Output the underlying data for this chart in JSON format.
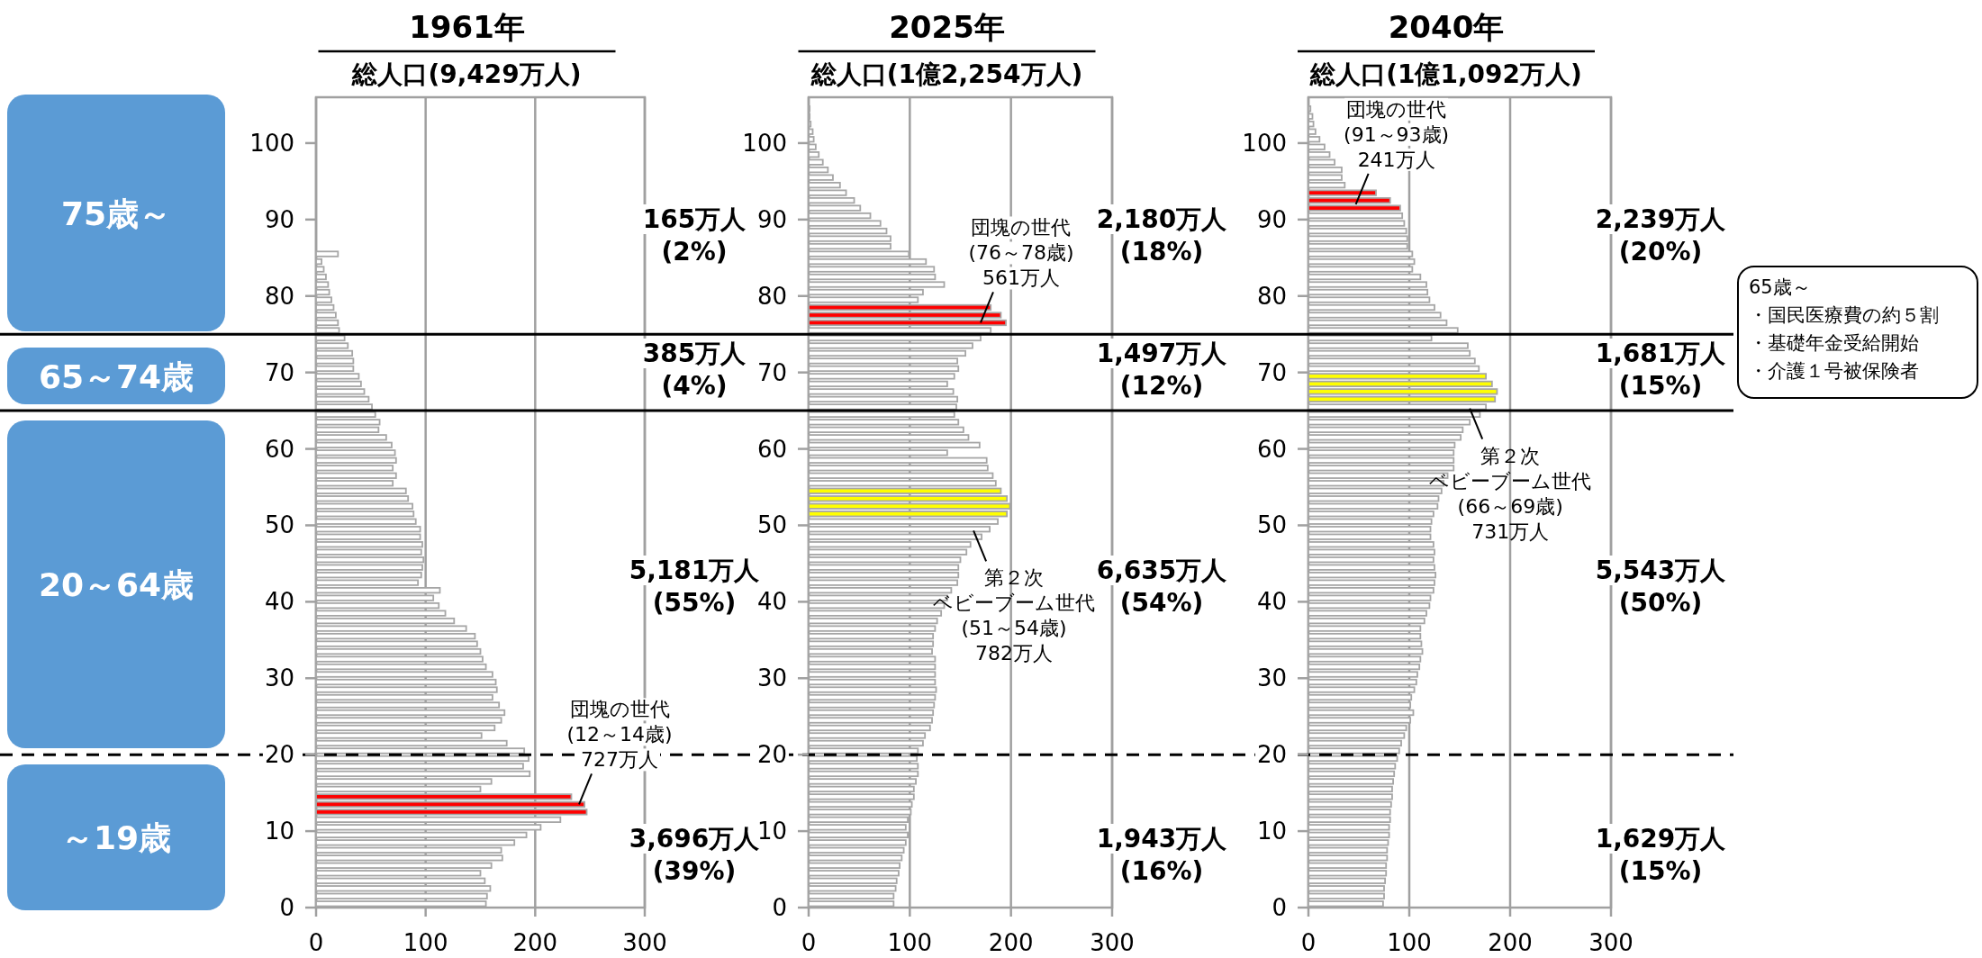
{
  "chart_data": [
    {
      "type": "histogram",
      "orientation": "horizontal",
      "title": "1961年",
      "subtitle": "総人口(9,429万人)",
      "bins": [
        0,
        1,
        2,
        3,
        4,
        5,
        6,
        7,
        8,
        9,
        10,
        11,
        12,
        13,
        14,
        15,
        16,
        17,
        18,
        19,
        20,
        21,
        22,
        23,
        24,
        25,
        26,
        27,
        28,
        29,
        30,
        31,
        32,
        33,
        34,
        35,
        36,
        37,
        38,
        39,
        40,
        41,
        42,
        43,
        44,
        45,
        46,
        47,
        48,
        49,
        50,
        51,
        52,
        53,
        54,
        55,
        56,
        57,
        58,
        59,
        60,
        61,
        62,
        63,
        64,
        65,
        66,
        67,
        68,
        69,
        70,
        71,
        72,
        73,
        74,
        75,
        76,
        77,
        78,
        79,
        80,
        81,
        82,
        83,
        84,
        85,
        86
      ],
      "values": [
        155,
        156,
        159,
        154,
        150,
        160,
        170,
        169,
        181,
        192,
        205,
        223,
        247,
        245,
        233,
        150,
        160,
        195,
        189,
        194,
        190,
        174,
        151,
        163,
        169,
        172,
        167,
        161,
        165,
        164,
        161,
        155,
        152,
        150,
        147,
        145,
        137,
        126,
        118,
        112,
        107,
        113,
        93,
        96,
        97,
        98,
        96,
        97,
        95,
        95,
        91,
        89,
        88,
        84,
        82,
        70,
        73,
        70,
        73,
        72,
        69,
        64,
        57,
        58,
        54,
        51,
        48,
        44,
        41,
        39,
        34,
        34,
        33,
        29,
        26,
        21,
        20,
        18,
        16,
        14,
        12,
        11,
        9,
        7,
        5,
        20
      ],
      "colors": [
        "#ffffff",
        "#ffffff",
        "#ffffff",
        "#ffffff",
        "#ffffff",
        "#ffffff",
        "#ffffff",
        "#ffffff",
        "#ffffff",
        "#ffffff",
        "#ffffff",
        "#ffffff",
        "#ff0000",
        "#ff0000",
        "#ff0000",
        "#ffffff",
        "#ffffff",
        "#ffffff",
        "#ffffff",
        "#ffffff",
        "#ffffff",
        "#ffffff",
        "#ffffff",
        "#ffffff",
        "#ffffff",
        "#ffffff",
        "#ffffff",
        "#ffffff",
        "#ffffff",
        "#ffffff",
        "#ffffff",
        "#ffffff",
        "#ffffff",
        "#ffffff",
        "#ffffff",
        "#ffffff",
        "#ffffff",
        "#ffffff",
        "#ffffff",
        "#ffffff",
        "#ffffff",
        "#ffffff",
        "#ffffff",
        "#ffffff",
        "#ffffff",
        "#ffffff",
        "#ffffff",
        "#ffffff",
        "#ffffff",
        "#ffffff",
        "#ffffff",
        "#ffffff",
        "#ffffff",
        "#ffffff",
        "#ffffff",
        "#ffffff",
        "#ffffff",
        "#ffffff",
        "#ffffff",
        "#ffffff",
        "#ffffff",
        "#ffffff",
        "#ffffff",
        "#ffffff",
        "#ffffff",
        "#ffffff",
        "#ffffff",
        "#ffffff",
        "#ffffff",
        "#ffffff",
        "#ffffff",
        "#ffffff",
        "#ffffff",
        "#ffffff",
        "#ffffff",
        "#ffffff",
        "#ffffff",
        "#ffffff",
        "#ffffff",
        "#ffffff",
        "#ffffff",
        "#ffffff",
        "#ffffff",
        "#ffffff",
        "#ffffff",
        "#ffffff"
      ],
      "xlim": [
        0,
        300
      ],
      "xticks": [
        0,
        100,
        200,
        300
      ],
      "ylim": [
        0,
        106
      ],
      "yticks": [
        0,
        10,
        20,
        30,
        40,
        50,
        60,
        70,
        80,
        90,
        100
      ],
      "grid": "x",
      "ref_lines": [
        {
          "axis": "y",
          "value": 75,
          "line_style": "solid",
          "color": "#000000"
        },
        {
          "axis": "y",
          "value": 65,
          "line_style": "solid",
          "color": "#000000"
        },
        {
          "axis": "y",
          "value": 20,
          "line_style": "dashed",
          "color": "#000000"
        }
      ],
      "annotations": [
        "165万人\n(2%)",
        "385万人\n(4%)",
        "5,181万人\n(55%)",
        "3,696万人\n(39%)",
        "75歳～",
        "65～74歳",
        "20～64歳",
        "～19歳",
        {
          "text": "団塊の世代\n(12～14歳)\n727万人",
          "x": 240,
          "y": 13.5
        }
      ]
    },
    {
      "type": "histogram",
      "orientation": "horizontal",
      "title": "2025年",
      "subtitle": "総人口(1億2,254万人)",
      "bins": [
        0,
        1,
        2,
        3,
        4,
        5,
        6,
        7,
        8,
        9,
        10,
        11,
        12,
        13,
        14,
        15,
        16,
        17,
        18,
        19,
        20,
        21,
        22,
        23,
        24,
        25,
        26,
        27,
        28,
        29,
        30,
        31,
        32,
        33,
        34,
        35,
        36,
        37,
        38,
        39,
        40,
        41,
        42,
        43,
        44,
        45,
        46,
        47,
        48,
        49,
        50,
        51,
        52,
        53,
        54,
        55,
        56,
        57,
        58,
        59,
        60,
        61,
        62,
        63,
        64,
        65,
        66,
        67,
        68,
        69,
        70,
        71,
        72,
        73,
        74,
        75,
        76,
        77,
        78,
        79,
        80,
        81,
        82,
        83,
        84,
        85,
        86,
        87,
        88,
        89,
        90,
        91,
        92,
        93,
        94,
        95,
        96,
        97,
        98,
        99,
        100,
        101,
        102,
        103,
        104,
        105
      ],
      "values": [
        84,
        84,
        86,
        87,
        89,
        90,
        92,
        94,
        96,
        98,
        96,
        98,
        101,
        102,
        104,
        104,
        106,
        108,
        108,
        107,
        108,
        113,
        115,
        120,
        122,
        123,
        124,
        125,
        126,
        125,
        125,
        125,
        125,
        122,
        123,
        123,
        125,
        127,
        131,
        134,
        137,
        141,
        147,
        148,
        148,
        150,
        156,
        160,
        171,
        179,
        187,
        196,
        199,
        196,
        190,
        185,
        182,
        177,
        176,
        137,
        169,
        158,
        153,
        148,
        144,
        146,
        147,
        143,
        137,
        144,
        148,
        147,
        155,
        162,
        170,
        180,
        195,
        190,
        180,
        108,
        113,
        134,
        125,
        124,
        116,
        99,
        81,
        81,
        77,
        71,
        61,
        51,
        45,
        37,
        31,
        24,
        19,
        14,
        10,
        7,
        5,
        4,
        2,
        1,
        1
      ],
      "colors": [
        "#ffffff",
        "#ffffff",
        "#ffffff",
        "#ffffff",
        "#ffffff",
        "#ffffff",
        "#ffffff",
        "#ffffff",
        "#ffffff",
        "#ffffff",
        "#ffffff",
        "#ffffff",
        "#ffffff",
        "#ffffff",
        "#ffffff",
        "#ffffff",
        "#ffffff",
        "#ffffff",
        "#ffffff",
        "#ffffff",
        "#ffffff",
        "#ffffff",
        "#ffffff",
        "#ffffff",
        "#ffffff",
        "#ffffff",
        "#ffffff",
        "#ffffff",
        "#ffffff",
        "#ffffff",
        "#ffffff",
        "#ffffff",
        "#ffffff",
        "#ffffff",
        "#ffffff",
        "#ffffff",
        "#ffffff",
        "#ffffff",
        "#ffffff",
        "#ffffff",
        "#ffffff",
        "#ffffff",
        "#ffffff",
        "#ffffff",
        "#ffffff",
        "#ffffff",
        "#ffffff",
        "#ffffff",
        "#ffffff",
        "#ffffff",
        "#ffffff",
        "#ffff00",
        "#ffff00",
        "#ffff00",
        "#ffff00",
        "#ffffff",
        "#ffffff",
        "#ffffff",
        "#ffffff",
        "#ffffff",
        "#ffffff",
        "#ffffff",
        "#ffffff",
        "#ffffff",
        "#ffffff",
        "#ffffff",
        "#ffffff",
        "#ffffff",
        "#ffffff",
        "#ffffff",
        "#ffffff",
        "#ffffff",
        "#ffffff",
        "#ffffff",
        "#ffffff",
        "#ffffff",
        "#ff0000",
        "#ff0000",
        "#ff0000",
        "#ffffff",
        "#ffffff",
        "#ffffff",
        "#ffffff",
        "#ffffff",
        "#ffffff",
        "#ffffff",
        "#ffffff",
        "#ffffff",
        "#ffffff",
        "#ffffff",
        "#ffffff",
        "#ffffff",
        "#ffffff",
        "#ffffff",
        "#ffffff",
        "#ffffff",
        "#ffffff",
        "#ffffff",
        "#ffffff",
        "#ffffff",
        "#ffffff",
        "#ffffff",
        "#ffffff",
        "#ffffff",
        "#ffffff"
      ],
      "xlim": [
        0,
        300
      ],
      "xticks": [
        0,
        100,
        200,
        300
      ],
      "ylim": [
        0,
        106
      ],
      "yticks": [
        0,
        10,
        20,
        30,
        40,
        50,
        60,
        70,
        80,
        90,
        100
      ],
      "grid": "x",
      "ref_lines": [
        {
          "axis": "y",
          "value": 75,
          "line_style": "solid",
          "color": "#000000"
        },
        {
          "axis": "y",
          "value": 65,
          "line_style": "solid",
          "color": "#000000"
        },
        {
          "axis": "y",
          "value": 20,
          "line_style": "dashed",
          "color": "#000000"
        }
      ],
      "annotations": [
        "2,180万人\n(18%)",
        "1,497万人\n(12%)",
        "6,635万人\n(54%)",
        "1,943万人\n(16%)",
        {
          "text": "団塊の世代\n(76～78歳)\n561万人",
          "x": 170,
          "y": 76.5
        },
        {
          "text": "第２次ベビーブーム世代\n(51～54歳)\n782万人",
          "x": 163,
          "y": 49.3
        }
      ]
    },
    {
      "type": "histogram",
      "orientation": "horizontal",
      "title": "2040年",
      "subtitle": "総人口(1億1,092万人)",
      "bins": [
        0,
        1,
        2,
        3,
        4,
        5,
        6,
        7,
        8,
        9,
        10,
        11,
        12,
        13,
        14,
        15,
        16,
        17,
        18,
        19,
        20,
        21,
        22,
        23,
        24,
        25,
        26,
        27,
        28,
        29,
        30,
        31,
        32,
        33,
        34,
        35,
        36,
        37,
        38,
        39,
        40,
        41,
        42,
        43,
        44,
        45,
        46,
        47,
        48,
        49,
        50,
        51,
        52,
        53,
        54,
        55,
        56,
        57,
        58,
        59,
        60,
        61,
        62,
        63,
        64,
        65,
        66,
        67,
        68,
        69,
        70,
        71,
        72,
        73,
        74,
        75,
        76,
        77,
        78,
        79,
        80,
        81,
        82,
        83,
        84,
        85,
        86,
        87,
        88,
        89,
        90,
        91,
        92,
        93,
        94,
        95,
        96,
        97,
        98,
        99,
        100,
        101,
        102,
        103,
        104,
        105
      ],
      "values": [
        74,
        75,
        75,
        76,
        77,
        77,
        78,
        78,
        79,
        80,
        80,
        81,
        81,
        82,
        83,
        83,
        84,
        85,
        86,
        88,
        90,
        92,
        95,
        97,
        101,
        104,
        101,
        102,
        105,
        107,
        108,
        110,
        111,
        113,
        112,
        111,
        111,
        115,
        117,
        120,
        121,
        124,
        125,
        126,
        125,
        124,
        125,
        124,
        121,
        121,
        122,
        124,
        128,
        129,
        132,
        134,
        138,
        144,
        144,
        144,
        145,
        151,
        153,
        160,
        170,
        176,
        185,
        187,
        182,
        176,
        169,
        165,
        160,
        158,
        122,
        148,
        137,
        131,
        125,
        120,
        118,
        117,
        111,
        103,
        105,
        103,
        98,
        98,
        97,
        95,
        93,
        91,
        81,
        67,
        36,
        33,
        33,
        26,
        21,
        16,
        11,
        7,
        5,
        4,
        2
      ],
      "colors": [
        "#ffffff",
        "#ffffff",
        "#ffffff",
        "#ffffff",
        "#ffffff",
        "#ffffff",
        "#ffffff",
        "#ffffff",
        "#ffffff",
        "#ffffff",
        "#ffffff",
        "#ffffff",
        "#ffffff",
        "#ffffff",
        "#ffffff",
        "#ffffff",
        "#ffffff",
        "#ffffff",
        "#ffffff",
        "#ffffff",
        "#ffffff",
        "#ffffff",
        "#ffffff",
        "#ffffff",
        "#ffffff",
        "#ffffff",
        "#ffffff",
        "#ffffff",
        "#ffffff",
        "#ffffff",
        "#ffffff",
        "#ffffff",
        "#ffffff",
        "#ffffff",
        "#ffffff",
        "#ffffff",
        "#ffffff",
        "#ffffff",
        "#ffffff",
        "#ffffff",
        "#ffffff",
        "#ffffff",
        "#ffffff",
        "#ffffff",
        "#ffffff",
        "#ffffff",
        "#ffffff",
        "#ffffff",
        "#ffffff",
        "#ffffff",
        "#ffffff",
        "#ffffff",
        "#ffffff",
        "#ffffff",
        "#ffffff",
        "#ffffff",
        "#ffffff",
        "#ffffff",
        "#ffffff",
        "#ffffff",
        "#ffffff",
        "#ffffff",
        "#ffffff",
        "#ffffff",
        "#ffffff",
        "#ffffff",
        "#ffff00",
        "#ffff00",
        "#ffff00",
        "#ffff00",
        "#ffffff",
        "#ffffff",
        "#ffffff",
        "#ffffff",
        "#ffffff",
        "#ffffff",
        "#ffffff",
        "#ffffff",
        "#ffffff",
        "#ffffff",
        "#ffffff",
        "#ffffff",
        "#ffffff",
        "#ffffff",
        "#ffffff",
        "#ffffff",
        "#ffffff",
        "#ffffff",
        "#ffffff",
        "#ffffff",
        "#ffffff",
        "#ff0000",
        "#ff0000",
        "#ff0000",
        "#ffffff",
        "#ffffff",
        "#ffffff",
        "#ffffff",
        "#ffffff",
        "#ffffff",
        "#ffffff",
        "#ffffff",
        "#ffffff",
        "#ffffff",
        "#ffffff"
      ],
      "xlim": [
        0,
        300
      ],
      "xticks": [
        0,
        100,
        200,
        300
      ],
      "ylim": [
        0,
        106
      ],
      "yticks": [
        0,
        10,
        20,
        30,
        40,
        50,
        60,
        70,
        80,
        90,
        100
      ],
      "grid": "x",
      "ref_lines": [
        {
          "axis": "y",
          "value": 75,
          "line_style": "solid",
          "color": "#000000"
        },
        {
          "axis": "y",
          "value": 65,
          "line_style": "solid",
          "color": "#000000"
        },
        {
          "axis": "y",
          "value": 20,
          "line_style": "dashed",
          "color": "#000000"
        }
      ],
      "annotations": [
        "2,239万人\n(20%)",
        "1,681万人\n(15%)",
        "5,543万人\n(50%)",
        "1,629万人\n(15%)",
        "65歳～",
        "・国民医療費の約５割",
        "・基礎年金受給開始",
        "・介護１号被保険者",
        {
          "text": "団塊の世代\n(91～93歳)\n241万人",
          "x": 47,
          "y": 92
        },
        {
          "text": "第２次ベビーブーム世代\n(66～69歳)\n731万人",
          "x": 160,
          "y": 65.3
        }
      ]
    }
  ]
}
